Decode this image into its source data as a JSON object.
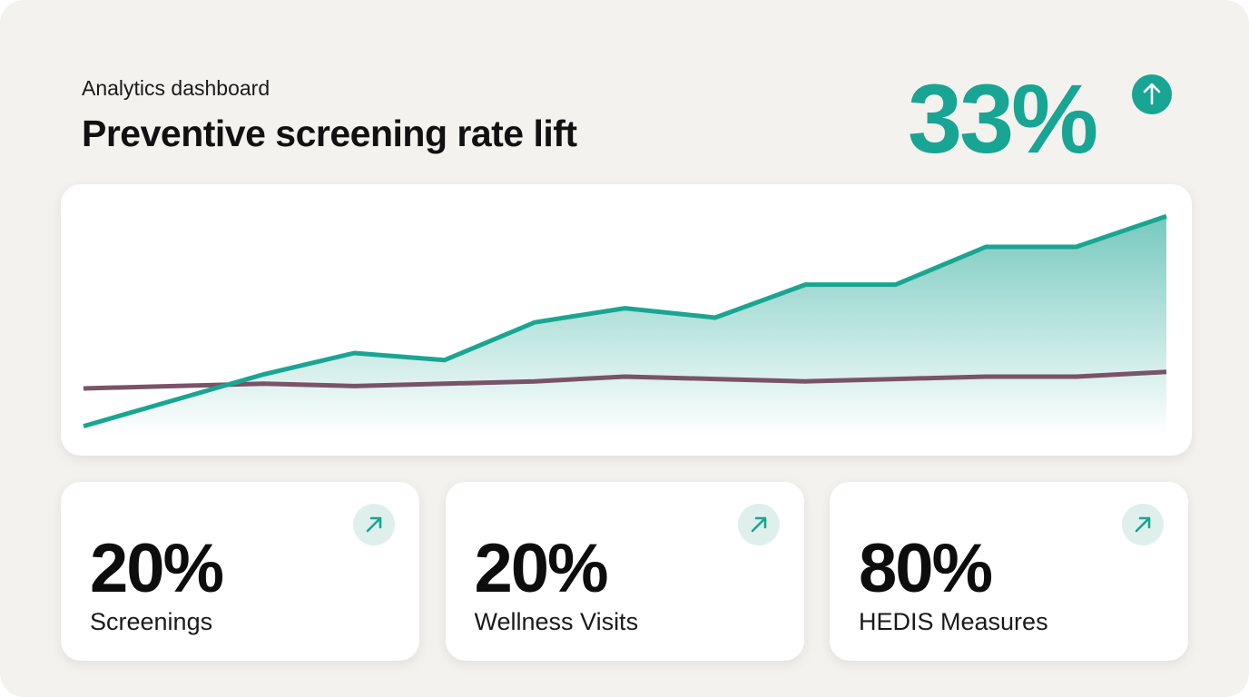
{
  "header": {
    "subtitle": "Analytics dashboard",
    "title": "Preventive screening rate lift"
  },
  "headline": {
    "value": "33%"
  },
  "chart_data": {
    "type": "line",
    "categories": [
      null,
      null,
      null,
      null,
      null,
      null,
      null,
      null,
      null,
      null,
      null,
      null,
      null
    ],
    "series": [
      {
        "color": "#1aa593",
        "fill": true,
        "values": [
          4,
          15,
          26,
          35,
          32,
          48,
          54,
          50,
          64,
          64,
          80,
          80,
          93
        ]
      },
      {
        "color": "#7a5368",
        "fill": false,
        "values": [
          20,
          21,
          22,
          21,
          22,
          23,
          25,
          24,
          23,
          24,
          25,
          25,
          27
        ]
      }
    ],
    "ylim": [
      0,
      100
    ]
  },
  "kpis": [
    {
      "value": "20%",
      "label": "Screenings"
    },
    {
      "value": "20%",
      "label": "Wellness Visits"
    },
    {
      "value": "80%",
      "label": "HEDIS Measures"
    }
  ]
}
